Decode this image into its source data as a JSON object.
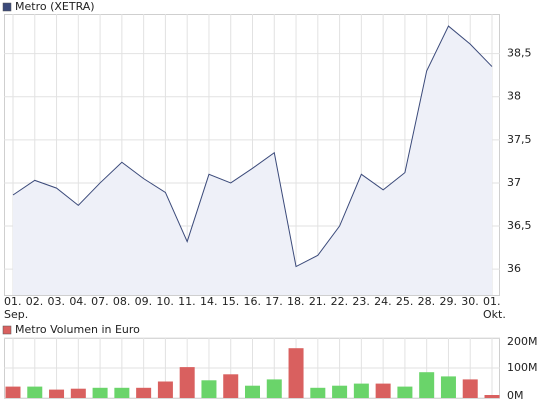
{
  "chart_data": [
    {
      "type": "line",
      "categories": [
        "01.",
        "02.",
        "03.",
        "04.",
        "07.",
        "08.",
        "09.",
        "10.",
        "11.",
        "14.",
        "15.",
        "16.",
        "17.",
        "18.",
        "21.",
        "22.",
        "23.",
        "24.",
        "25.",
        "28.",
        "29.",
        "30.",
        "01."
      ],
      "sublabels": [
        "Sep.",
        null,
        null,
        null,
        null,
        null,
        null,
        null,
        null,
        null,
        null,
        null,
        null,
        null,
        null,
        null,
        null,
        null,
        null,
        null,
        null,
        null,
        "Okt."
      ],
      "series": [
        {
          "name": "Metro (XETRA)",
          "color": "#3b4a7a",
          "fill": "#eef0f8",
          "values": [
            36.86,
            37.03,
            36.94,
            36.74,
            37.0,
            37.24,
            37.05,
            36.89,
            36.32,
            37.1,
            37.0,
            37.17,
            37.35,
            36.03,
            36.16,
            36.5,
            37.1,
            36.92,
            37.12,
            38.3,
            38.82,
            38.61,
            38.35
          ]
        }
      ],
      "ylim": [
        35.7,
        38.96
      ],
      "yticks": [
        36,
        {
          "value": 36.5,
          "label": "36,5"
        },
        37,
        {
          "value": 37.5,
          "label": "37,5"
        },
        38,
        {
          "value": 38.5,
          "label": "38,5"
        }
      ],
      "grid": true
    },
    {
      "type": "bar",
      "series": [
        {
          "name": "Metro Volumen in Euro",
          "color": "#d9605f",
          "colors": [
            "#d9605f",
            "#6ad46a",
            "#d9605f",
            "#d9605f",
            "#6ad46a",
            "#6ad46a",
            "#d9605f",
            "#d9605f",
            "#d9605f",
            "#6ad46a",
            "#d9605f",
            "#6ad46a",
            "#6ad46a",
            "#d9605f",
            "#6ad46a",
            "#6ad46a",
            "#6ad46a",
            "#d9605f",
            "#6ad46a",
            "#6ad46a",
            "#6ad46a",
            "#d9605f",
            "#d9605f"
          ],
          "values": [
            38000000,
            38000000,
            28000000,
            31000000,
            34000000,
            34000000,
            34000000,
            55000000,
            103000000,
            59000000,
            79000000,
            41000000,
            62000000,
            166000000,
            34000000,
            41000000,
            48000000,
            48000000,
            38000000,
            86000000,
            72000000,
            62000000,
            10000000
          ]
        }
      ],
      "ylim": [
        0,
        200000000
      ],
      "yticks": [
        {
          "value": 0,
          "label": "0M"
        },
        {
          "value": 100000000,
          "label": "100M"
        },
        {
          "value": 200000000,
          "label": "200M"
        }
      ],
      "grid": true
    }
  ]
}
